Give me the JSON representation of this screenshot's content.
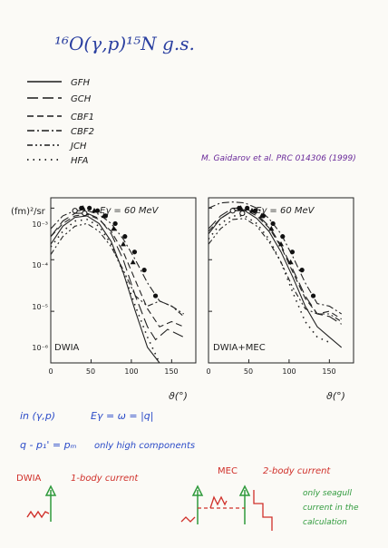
{
  "header": {
    "title": "¹⁶O(γ,p)¹⁵N g.s.",
    "legend": [
      {
        "label": "GFH",
        "dash": "solid"
      },
      {
        "label": "GCH",
        "dash": "longdash"
      },
      {
        "label": "CBF1",
        "dash": "dash"
      },
      {
        "label": "CBF2",
        "dash": "dashdot"
      },
      {
        "label": "JCH",
        "dash": "dashdotdot"
      },
      {
        "label": "HFA",
        "dash": "dot"
      }
    ],
    "reference": "M. Gaidarov et al. PRC 014306 (1999)"
  },
  "chart_data": [
    {
      "type": "line",
      "panel_label": "DWIA",
      "energy_label": "Eγ = 60 MeV",
      "ylabel": "(fm)²/sr",
      "xlabel": "ϑ(°)",
      "xlim": [
        0,
        180
      ],
      "ylim_log10": [
        -6,
        -2.8
      ],
      "xticks": [
        0,
        50,
        100,
        150
      ],
      "yticks": [
        {
          "label": "10⁻³",
          "log": -3
        },
        {
          "label": "10⁻⁴",
          "log": -4
        },
        {
          "label": "10⁻⁵",
          "log": -5
        },
        {
          "label": "10⁻⁶",
          "log": -6
        }
      ],
      "series": [
        {
          "dash": "solid",
          "x": [
            0,
            15,
            30,
            45,
            60,
            75,
            90,
            105,
            120,
            135
          ],
          "log10y": [
            -3.7,
            -3.35,
            -3.18,
            -3.15,
            -3.3,
            -3.65,
            -4.25,
            -5.0,
            -5.7,
            -6.2
          ]
        },
        {
          "dash": "longdash",
          "x": [
            0,
            15,
            30,
            45,
            60,
            75,
            90,
            105,
            120,
            130,
            145,
            165
          ],
          "log10y": [
            -3.55,
            -3.25,
            -3.1,
            -3.1,
            -3.2,
            -3.5,
            -4.0,
            -4.7,
            -5.3,
            -5.55,
            -5.35,
            -5.5
          ]
        },
        {
          "dash": "dash",
          "x": [
            0,
            15,
            30,
            45,
            60,
            75,
            90,
            105,
            120,
            135,
            150,
            165
          ],
          "log10y": [
            -3.55,
            -3.3,
            -3.15,
            -3.12,
            -3.22,
            -3.45,
            -3.85,
            -4.4,
            -4.95,
            -5.3,
            -5.2,
            -5.3
          ]
        },
        {
          "dash": "dashdot",
          "x": [
            0,
            15,
            30,
            45,
            60,
            75,
            90,
            105,
            120,
            135,
            150,
            165
          ],
          "log10y": [
            -3.4,
            -3.15,
            -3.05,
            -3.05,
            -3.12,
            -3.3,
            -3.6,
            -4.0,
            -4.45,
            -4.8,
            -4.9,
            -5.05
          ]
        },
        {
          "dash": "dashdotdot",
          "x": [
            0,
            15,
            30,
            45,
            60,
            75,
            90,
            105,
            120,
            135,
            150,
            165
          ],
          "log10y": [
            -3.9,
            -3.55,
            -3.35,
            -3.3,
            -3.45,
            -3.75,
            -4.2,
            -4.7,
            -4.9,
            -4.8,
            -4.9,
            -5.1
          ]
        },
        {
          "dash": "dot",
          "x": [
            0,
            15,
            30,
            45,
            60,
            75,
            90,
            105,
            120,
            135
          ],
          "log10y": [
            -3.75,
            -3.45,
            -3.25,
            -3.22,
            -3.35,
            -3.7,
            -4.25,
            -4.9,
            -5.5,
            -6.0
          ]
        }
      ],
      "points": [
        {
          "marker": "circle-filled",
          "x": [
            38,
            48,
            58,
            68,
            80,
            92,
            104,
            116,
            130
          ],
          "log10y": [
            -3.0,
            -3.0,
            -3.05,
            -3.15,
            -3.3,
            -3.55,
            -3.85,
            -4.2,
            -4.7
          ]
        },
        {
          "marker": "triangle-filled",
          "x": [
            40,
            54,
            66,
            78,
            90,
            102
          ],
          "log10y": [
            -3.0,
            -3.05,
            -3.15,
            -3.4,
            -3.7,
            -4.05
          ]
        },
        {
          "marker": "circle-open",
          "x": [
            30,
            42
          ],
          "log10y": [
            -3.05,
            -3.1
          ]
        }
      ]
    },
    {
      "type": "line",
      "panel_label": "DWIA+MEC",
      "energy_label": "Eγ = 60 MeV",
      "xlabel": "ϑ(°)",
      "xlim": [
        0,
        180
      ],
      "ylim_log10": [
        -6,
        -2.8
      ],
      "xticks": [
        0,
        50,
        100,
        150
      ],
      "series": [
        {
          "dash": "solid",
          "x": [
            0,
            15,
            30,
            45,
            60,
            75,
            90,
            105,
            120,
            135,
            150,
            165
          ],
          "log10y": [
            -3.5,
            -3.2,
            -3.05,
            -3.05,
            -3.2,
            -3.45,
            -3.85,
            -4.35,
            -4.9,
            -5.3,
            -5.5,
            -5.7
          ]
        },
        {
          "dash": "longdash",
          "x": [
            0,
            15,
            30,
            45,
            60,
            75,
            90,
            105,
            120,
            135,
            150,
            165
          ],
          "log10y": [
            -3.4,
            -3.15,
            -3.0,
            -3.0,
            -3.12,
            -3.35,
            -3.72,
            -4.2,
            -4.7,
            -5.05,
            -5.1,
            -5.25
          ]
        },
        {
          "dash": "dash",
          "x": [
            0,
            15,
            30,
            45,
            60,
            75,
            90,
            105,
            120,
            135,
            150,
            165
          ],
          "log10y": [
            -3.45,
            -3.2,
            -3.05,
            -3.03,
            -3.15,
            -3.38,
            -3.75,
            -4.25,
            -4.75,
            -5.05,
            -5.0,
            -5.15
          ]
        },
        {
          "dash": "dashdot",
          "x": [
            0,
            15,
            30,
            45,
            60,
            75,
            90,
            105,
            120,
            135,
            150,
            165
          ],
          "log10y": [
            -3.0,
            -2.9,
            -2.88,
            -2.9,
            -3.0,
            -3.2,
            -3.5,
            -3.95,
            -4.45,
            -4.85,
            -4.9,
            -5.05
          ]
        },
        {
          "dash": "dashdotdot",
          "x": [
            0,
            15,
            30,
            45,
            60,
            75,
            90,
            105,
            120,
            135,
            150,
            165
          ],
          "log10y": [
            -3.7,
            -3.4,
            -3.22,
            -3.2,
            -3.35,
            -3.65,
            -4.05,
            -4.55,
            -4.95,
            -5.05,
            -5.05,
            -5.2
          ]
        },
        {
          "dash": "dot",
          "x": [
            0,
            15,
            30,
            45,
            60,
            75,
            90,
            105,
            120,
            135,
            150
          ],
          "log10y": [
            -3.6,
            -3.3,
            -3.15,
            -3.15,
            -3.3,
            -3.6,
            -4.05,
            -4.65,
            -5.2,
            -5.5,
            -5.6
          ]
        }
      ],
      "points": [
        {
          "marker": "circle-filled",
          "x": [
            38,
            48,
            58,
            68,
            80,
            92,
            104,
            116,
            130
          ],
          "log10y": [
            -3.0,
            -3.0,
            -3.05,
            -3.15,
            -3.3,
            -3.55,
            -3.85,
            -4.2,
            -4.7
          ]
        },
        {
          "marker": "triangle-filled",
          "x": [
            40,
            54,
            66,
            78,
            90,
            102
          ],
          "log10y": [
            -3.0,
            -3.05,
            -3.15,
            -3.4,
            -3.7,
            -4.05
          ]
        },
        {
          "marker": "circle-open",
          "x": [
            30,
            42
          ],
          "log10y": [
            -3.05,
            -3.1
          ]
        }
      ]
    }
  ],
  "notes": {
    "kinematics_1": "in (γ,p)",
    "kinematics_2": "Eγ = ω = |q|",
    "momentum": "q - p₁' = pₘ",
    "momentum_note": "only high components",
    "dwia": "DWIA",
    "one_body": "1-body current",
    "mec": "MEC",
    "two_body": "2-body current",
    "seagull_1": "only seagull",
    "seagull_2": "current in the",
    "seagull_3": "calculation"
  },
  "colors": {
    "title": "#2a3fa0",
    "legend": "#1a1a1a",
    "reference": "#6a2a9a",
    "blue_note": "#2b4bc8",
    "red_note": "#d0302a",
    "green_note": "#2f9a3c",
    "arrow_red": "#d0302a",
    "arrow_green": "#2f9a3c"
  }
}
